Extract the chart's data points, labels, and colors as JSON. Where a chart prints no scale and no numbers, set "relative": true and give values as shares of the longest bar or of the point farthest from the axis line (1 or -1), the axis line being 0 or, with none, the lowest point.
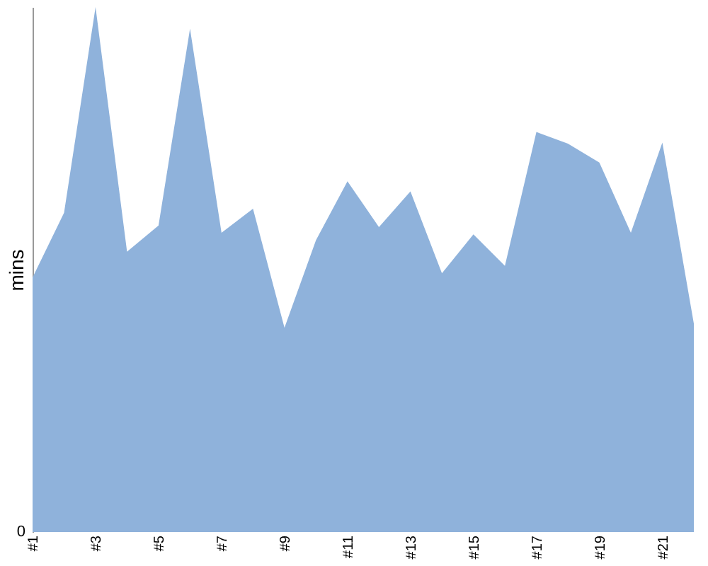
{
  "chart_data": {
    "type": "area",
    "ylabel": "mins",
    "relative": true,
    "annotations": [
      "0"
    ],
    "categories": [
      "#1",
      null,
      "#3",
      null,
      "#5",
      null,
      "#7",
      null,
      "#9",
      null,
      "#11",
      null,
      "#13",
      null,
      "#15",
      null,
      "#17",
      null,
      "#19",
      null,
      "#21",
      null
    ],
    "series": [
      {
        "color": "#8fb2db",
        "values": [
          0.485,
          0.608,
          1,
          0.534,
          0.584,
          0.959,
          0.57,
          0.616,
          0.389,
          0.556,
          0.668,
          0.581,
          0.649,
          0.493,
          0.567,
          0.507,
          0.762,
          0.74,
          0.704,
          0.57,
          0.742,
          0.397
        ]
      }
    ]
  }
}
